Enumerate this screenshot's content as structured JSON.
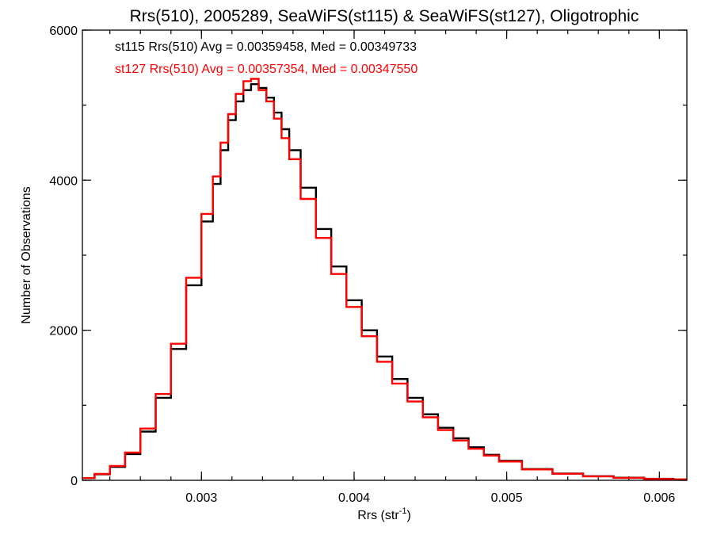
{
  "chart_data": {
    "type": "line",
    "style": "histogram-step",
    "title": "Rrs(510), 2005289, SeaWiFS(st115) & SeaWiFS(st127), Oligotrophic",
    "xlabel": "Rrs (str",
    "xlabel_sup": "-1",
    "xlabel_end": ")",
    "ylabel": "Number of Observations",
    "xlim": [
      0.00222,
      0.00618
    ],
    "ylim": [
      0,
      6000
    ],
    "xticks": [
      0.003,
      0.004,
      0.005,
      0.006
    ],
    "xtick_labels": [
      "0.003",
      "0.004",
      "0.005",
      "0.006"
    ],
    "yticks": [
      0,
      2000,
      4000,
      6000
    ],
    "ytick_labels": [
      "0",
      "2000",
      "4000",
      "6000"
    ],
    "x_minor_step": 0.0002,
    "y_minor_step": 1000,
    "legend_position": "top-left",
    "legend": [
      {
        "text": "st115 Rrs(510) Avg = 0.00359458, Med = 0.00349733",
        "color": "#000000"
      },
      {
        "text": "st127 Rrs(510) Avg = 0.00357354, Med = 0.00347550",
        "color": "#ff0000"
      }
    ],
    "series": [
      {
        "color": "#000000",
        "x": [
          0.00225,
          0.00235,
          0.00245,
          0.00255,
          0.00265,
          0.00275,
          0.00285,
          0.00295,
          0.00305,
          0.0031,
          0.00315,
          0.0032,
          0.00325,
          0.0033,
          0.00335,
          0.0034,
          0.00345,
          0.0035,
          0.00355,
          0.0036,
          0.0037,
          0.0038,
          0.0039,
          0.004,
          0.0041,
          0.0042,
          0.0043,
          0.0044,
          0.0045,
          0.0046,
          0.0047,
          0.0048,
          0.0049,
          0.005,
          0.0052,
          0.0054,
          0.0056,
          0.0058,
          0.006,
          0.00618
        ],
        "y": [
          30,
          80,
          180,
          350,
          650,
          1100,
          1750,
          2600,
          3450,
          3950,
          4400,
          4800,
          5050,
          5200,
          5280,
          5230,
          5100,
          4900,
          4680,
          4400,
          3900,
          3350,
          2850,
          2400,
          2000,
          1650,
          1350,
          1100,
          880,
          700,
          560,
          440,
          340,
          260,
          150,
          90,
          55,
          35,
          20,
          12
        ]
      },
      {
        "color": "#ff0000",
        "x": [
          0.00225,
          0.00235,
          0.00245,
          0.00255,
          0.00265,
          0.00275,
          0.00285,
          0.00295,
          0.00305,
          0.0031,
          0.00315,
          0.0032,
          0.00325,
          0.0033,
          0.00335,
          0.0034,
          0.00345,
          0.0035,
          0.00355,
          0.0036,
          0.0037,
          0.0038,
          0.0039,
          0.004,
          0.0041,
          0.0042,
          0.0043,
          0.0044,
          0.0045,
          0.0046,
          0.0047,
          0.0048,
          0.0049,
          0.005,
          0.0052,
          0.0054,
          0.0056,
          0.0058,
          0.006,
          0.00618
        ],
        "y": [
          30,
          85,
          190,
          370,
          690,
          1150,
          1820,
          2700,
          3550,
          4050,
          4500,
          4880,
          5150,
          5320,
          5350,
          5200,
          5050,
          4820,
          4560,
          4280,
          3750,
          3230,
          2750,
          2310,
          1920,
          1580,
          1290,
          1050,
          840,
          670,
          530,
          420,
          330,
          250,
          145,
          88,
          52,
          33,
          18,
          11
        ]
      }
    ]
  }
}
